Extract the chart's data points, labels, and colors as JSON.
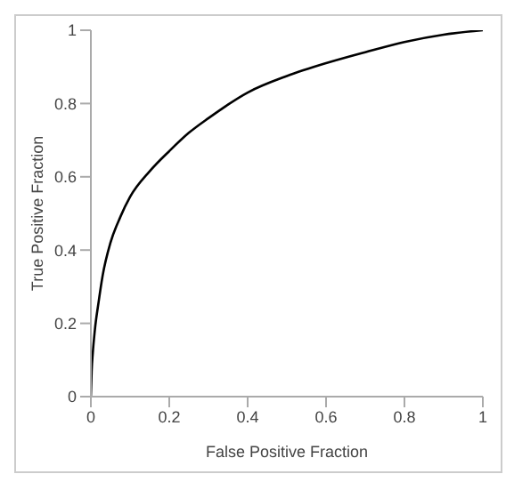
{
  "chart_data": {
    "type": "line",
    "xlabel": "False Positive Fraction",
    "ylabel": "True Positive Fraction",
    "x": [
      0,
      0.002,
      0.005,
      0.01,
      0.02,
      0.03,
      0.05,
      0.075,
      0.1,
      0.15,
      0.2,
      0.25,
      0.3,
      0.4,
      0.5,
      0.6,
      0.7,
      0.8,
      0.9,
      1
    ],
    "series": [
      {
        "color": "#000000",
        "values": [
          0,
          0.07,
          0.12,
          0.18,
          0.26,
          0.33,
          0.42,
          0.49,
          0.545,
          0.615,
          0.67,
          0.72,
          0.76,
          0.83,
          0.875,
          0.91,
          0.94,
          0.968,
          0.988,
          1
        ]
      }
    ],
    "xlim": [
      0,
      1
    ],
    "ylim": [
      0,
      1
    ],
    "xticks": [
      0,
      0.2,
      0.4,
      0.6,
      0.8,
      1
    ],
    "yticks": [
      0,
      0.2,
      0.4,
      0.6,
      0.8,
      1
    ],
    "grid": false,
    "marker": "none",
    "line_style": "solid"
  }
}
